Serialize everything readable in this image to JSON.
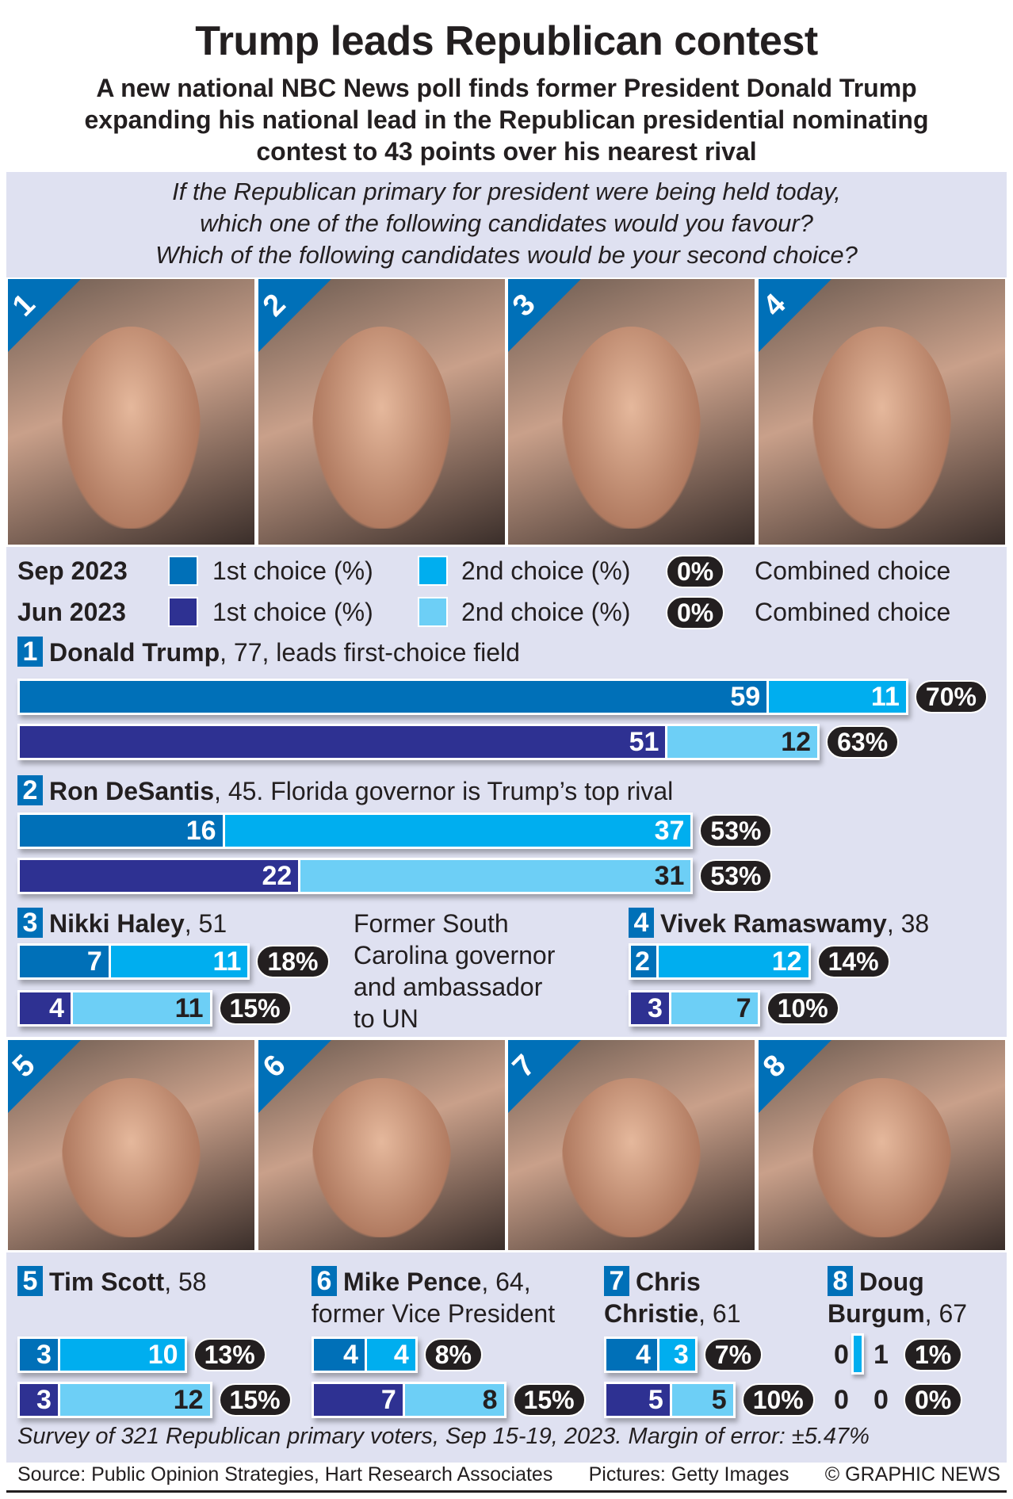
{
  "title": "Trump leads Republican contest",
  "subtitle": [
    "A new national NBC News poll finds former President Donald Trump",
    "expanding his national lead in the Republican presidential nominating",
    "contest to 43 points over his nearest rival"
  ],
  "question": [
    "If the Republican primary for president were being held today,",
    "which one of the following candidates would you favour?",
    "Which of the following candidates would be your second choice?"
  ],
  "colors": {
    "sep_first": "#0070b8",
    "sep_second": "#00aeef",
    "jun_first": "#2e3192",
    "jun_second": "#6dcff6",
    "panel": "#dfe1f1",
    "pill": "#231f20"
  },
  "legend": {
    "rows": [
      {
        "date": "Sep 2023",
        "first": "1st choice (%)",
        "second": "2nd choice (%)",
        "pill": "0%",
        "combined": "Combined choice"
      },
      {
        "date": "Jun 2023",
        "first": "1st choice (%)",
        "second": "2nd choice (%)",
        "pill": "0%",
        "combined": "Combined choice"
      }
    ]
  },
  "chart_data": {
    "type": "bar",
    "title": "Trump leads Republican contest",
    "unit": "%",
    "series": [
      "Sep 2023 1st choice",
      "Sep 2023 2nd choice",
      "Jun 2023 1st choice",
      "Jun 2023 2nd choice"
    ],
    "candidates": [
      {
        "rank": "1",
        "name": "Donald Trump",
        "suffix": ", 77, leads first-choice field",
        "sep": {
          "first": 59,
          "second": 11,
          "combined": "70%"
        },
        "jun": {
          "first": 51,
          "second": 12,
          "combined": "63%"
        }
      },
      {
        "rank": "2",
        "name": "Ron DeSantis",
        "suffix": ", 45. Florida governor is Trump’s top rival",
        "sep": {
          "first": 16,
          "second": 37,
          "combined": "53%"
        },
        "jun": {
          "first": 22,
          "second": 31,
          "combined": "53%"
        }
      },
      {
        "rank": "3",
        "name": "Nikki Haley",
        "suffix": ", 51",
        "desc": [
          "Former South",
          "Carolina governor",
          "and ambassador",
          "to UN"
        ],
        "sep": {
          "first": 7,
          "second": 11,
          "combined": "18%"
        },
        "jun": {
          "first": 4,
          "second": 11,
          "combined": "15%"
        }
      },
      {
        "rank": "4",
        "name": "Vivek Ramaswamy",
        "suffix": ", 38",
        "sep": {
          "first": 2,
          "second": 12,
          "combined": "14%"
        },
        "jun": {
          "first": 3,
          "second": 7,
          "combined": "10%"
        }
      },
      {
        "rank": "5",
        "name": "Tim Scott",
        "suffix": ", 58",
        "sep": {
          "first": 3,
          "second": 10,
          "combined": "13%"
        },
        "jun": {
          "first": 3,
          "second": 12,
          "combined": "15%"
        }
      },
      {
        "rank": "6",
        "name": "Mike Pence",
        "suffix": ", 64, former Vice President",
        "sep": {
          "first": 4,
          "second": 4,
          "combined": "8%"
        },
        "jun": {
          "first": 7,
          "second": 8,
          "combined": "15%"
        }
      },
      {
        "rank": "7",
        "name": "Chris Christie",
        "suffix": ", 61",
        "sep": {
          "first": 4,
          "second": 3,
          "combined": "7%"
        },
        "jun": {
          "first": 5,
          "second": 5,
          "combined": "10%"
        }
      },
      {
        "rank": "8",
        "name": "Doug Burgum",
        "suffix": ", 67",
        "sep": {
          "first": 0,
          "second": 1,
          "combined": "1%"
        },
        "jun": {
          "first": 0,
          "second": 0,
          "combined": "0%"
        }
      }
    ]
  },
  "note": "Survey of 321 Republican primary voters, Sep 15-19, 2023. Margin of error: ±5.47%",
  "source": {
    "source": "Source: Public Opinion Strategies, Hart Research Associates",
    "pictures": "Pictures: Getty Images",
    "credit": "© GRAPHIC NEWS"
  }
}
